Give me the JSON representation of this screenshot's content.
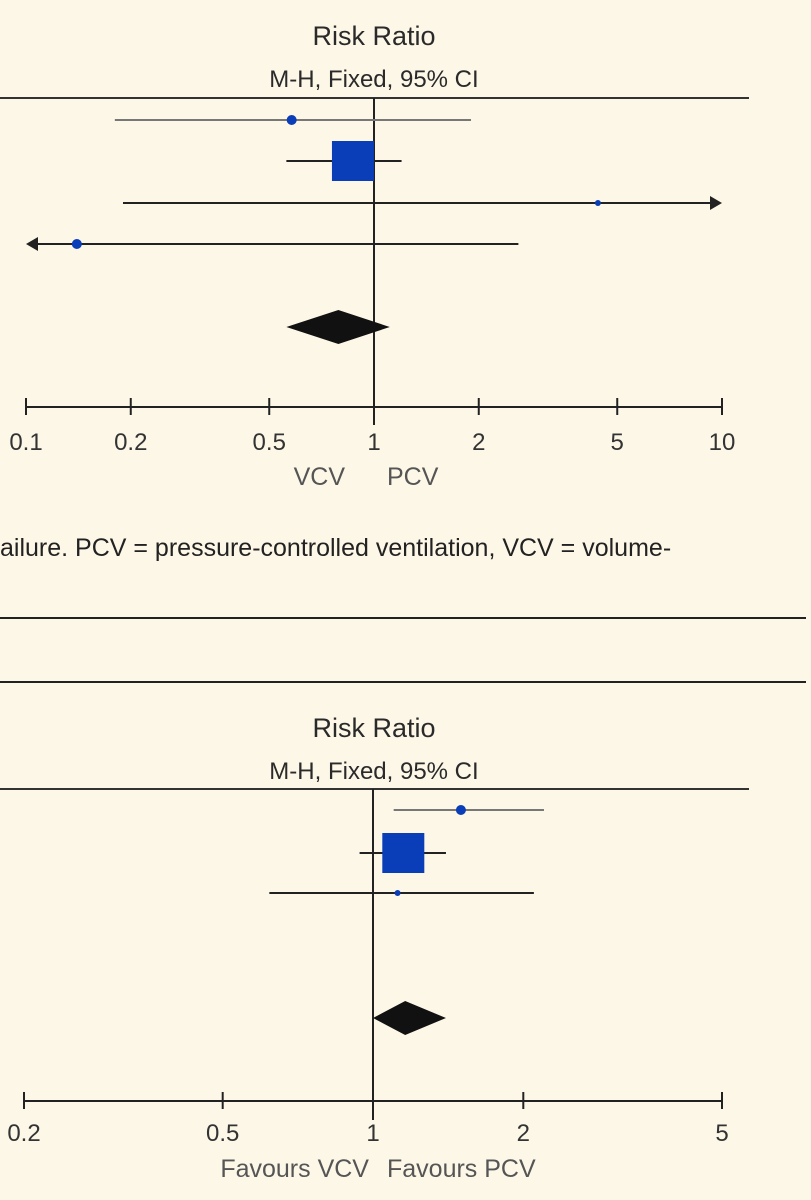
{
  "caption": {
    "text": "ailure. PCV = pressure-controlled ventilation, VCV = volume-"
  },
  "chart_data": [
    {
      "type": "forest",
      "title": "Risk Ratio",
      "subtitle": "M-H, Fixed, 95% CI",
      "xscale": "log",
      "xlim": [
        0.1,
        10
      ],
      "ticks": [
        0.1,
        0.2,
        0.5,
        1,
        2,
        5,
        10
      ],
      "tick_labels": [
        "0.1",
        "0.2",
        "0.5",
        "1",
        "2",
        "5",
        "10"
      ],
      "xlabel_left": "VCV",
      "xlabel_right": "PCV",
      "studies": [
        {
          "estimate": 0.58,
          "ci_low": 0.18,
          "ci_high": 1.9,
          "weight": "small"
        },
        {
          "estimate": 0.87,
          "ci_low": 0.56,
          "ci_high": 1.2,
          "weight": "large"
        },
        {
          "estimate": 4.4,
          "ci_low": 0.19,
          "ci_high": 10,
          "arrow_right": true,
          "weight": "tiny"
        },
        {
          "estimate": 0.14,
          "ci_low": 0.1,
          "ci_high": 2.6,
          "arrow_left": true,
          "weight": "small"
        }
      ],
      "overall": {
        "estimate": 0.79,
        "ci_low": 0.56,
        "ci_high": 1.11
      },
      "colors": {
        "marker": "#0a3db8",
        "diamond": "#111111",
        "line": "#222222",
        "ci_light": "#777777"
      }
    },
    {
      "type": "forest",
      "title": "Risk Ratio",
      "subtitle": "M-H, Fixed, 95% CI",
      "xscale": "log",
      "xlim": [
        0.2,
        5
      ],
      "ticks": [
        0.2,
        0.5,
        1,
        2,
        5
      ],
      "tick_labels": [
        "0.2",
        "0.5",
        "1",
        "2",
        "5"
      ],
      "xlabel_left": "Favours VCV",
      "xlabel_right": "Favours PCV",
      "studies": [
        {
          "estimate": 1.5,
          "ci_low": 1.1,
          "ci_high": 2.2,
          "weight": "small"
        },
        {
          "estimate": 1.15,
          "ci_low": 0.94,
          "ci_high": 1.4,
          "weight": "large"
        },
        {
          "estimate": 1.12,
          "ci_low": 0.62,
          "ci_high": 2.1,
          "weight": "tiny"
        }
      ],
      "overall": {
        "estimate": 1.16,
        "ci_low": 1.0,
        "ci_high": 1.4
      },
      "colors": {
        "marker": "#0a3db8",
        "diamond": "#111111",
        "line": "#222222",
        "ci_light": "#777777"
      }
    }
  ]
}
